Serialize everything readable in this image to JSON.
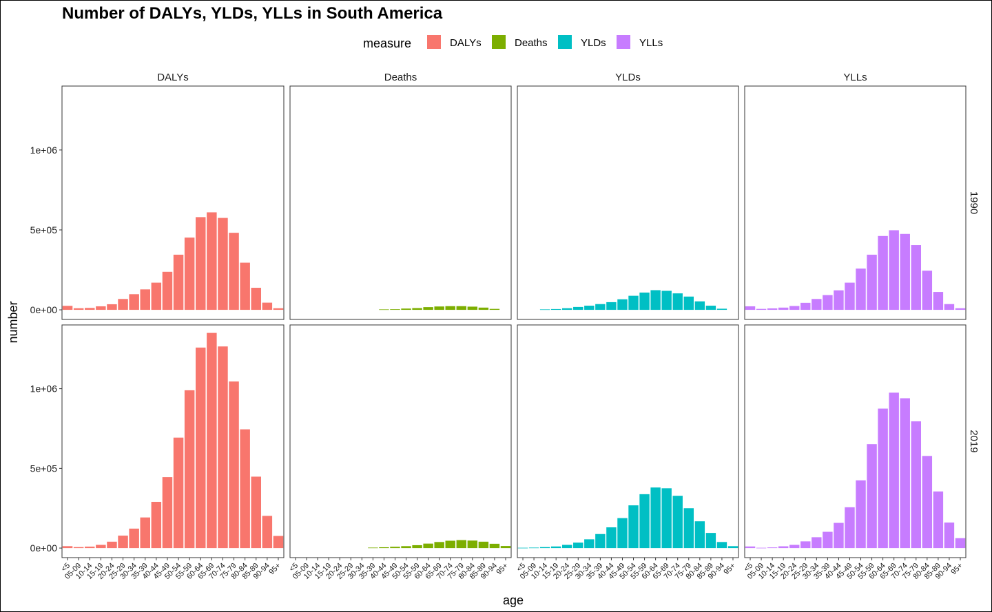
{
  "chart_data": {
    "type": "bar",
    "title": "Number of DALYs, YLDs, YLLs in South America",
    "xlabel": "age",
    "ylabel": "number",
    "ylim": [
      -60000,
      1400000
    ],
    "yticks": [
      0,
      500000,
      1000000
    ],
    "ytick_labels": [
      "0e+00",
      "5e+05",
      "1e+06"
    ],
    "legend": {
      "title": "measure",
      "placement": "top",
      "entries": [
        {
          "label": "DALYs",
          "color": "#F8766D"
        },
        {
          "label": "Deaths",
          "color": "#7CAE00"
        },
        {
          "label": "YLDs",
          "color": "#00BFC4"
        },
        {
          "label": "YLLs",
          "color": "#C77CFF"
        }
      ]
    },
    "facet_columns": [
      "DALYs",
      "Deaths",
      "YLDs",
      "YLLs"
    ],
    "facet_rows": [
      "1990",
      "2019"
    ],
    "categories": [
      "<5",
      "05-09",
      "10-14",
      "15-19",
      "20-24",
      "25-29",
      "30-34",
      "35-39",
      "40-44",
      "45-49",
      "50-54",
      "55-59",
      "60-64",
      "65-69",
      "70-74",
      "75-79",
      "80-84",
      "85-89",
      "90-94",
      "95+"
    ],
    "panels": [
      {
        "row": "1990",
        "column": "DALYs",
        "color": "#F8766D",
        "values": [
          25000,
          10000,
          12000,
          22000,
          35000,
          68000,
          98000,
          128000,
          170000,
          238000,
          345000,
          452000,
          580000,
          610000,
          575000,
          482000,
          295000,
          138000,
          45000,
          10000
        ]
      },
      {
        "row": "1990",
        "column": "Deaths",
        "color": "#7CAE00",
        "values": [
          0,
          0,
          0,
          0,
          0,
          0,
          0,
          0,
          3000,
          4000,
          8000,
          11000,
          17000,
          21000,
          23000,
          23000,
          20000,
          14000,
          6000,
          0
        ]
      },
      {
        "row": "1990",
        "column": "YLDs",
        "color": "#00BFC4",
        "values": [
          0,
          0,
          3000,
          5000,
          10000,
          18000,
          26000,
          36000,
          48000,
          66000,
          88000,
          108000,
          123000,
          119000,
          103000,
          83000,
          53000,
          26000,
          7000,
          0
        ]
      },
      {
        "row": "1990",
        "column": "YLLs",
        "color": "#C77CFF",
        "values": [
          22000,
          6000,
          9000,
          14000,
          24000,
          44000,
          68000,
          92000,
          122000,
          170000,
          258000,
          345000,
          462000,
          498000,
          475000,
          405000,
          245000,
          112000,
          36000,
          10000
        ]
      },
      {
        "row": "2019",
        "column": "DALYs",
        "color": "#F8766D",
        "values": [
          12000,
          6000,
          9000,
          20000,
          40000,
          78000,
          122000,
          192000,
          290000,
          445000,
          693000,
          990000,
          1258000,
          1350000,
          1265000,
          1045000,
          745000,
          448000,
          202000,
          76000
        ]
      },
      {
        "row": "2019",
        "column": "Deaths",
        "color": "#7CAE00",
        "values": [
          0,
          0,
          0,
          0,
          0,
          0,
          0,
          3000,
          5000,
          8000,
          12000,
          18000,
          28000,
          38000,
          46000,
          50000,
          47000,
          40000,
          27000,
          13000
        ]
      },
      {
        "row": "2019",
        "column": "YLDs",
        "color": "#00BFC4",
        "values": [
          2000,
          3000,
          6000,
          10000,
          20000,
          34000,
          55000,
          88000,
          130000,
          188000,
          268000,
          338000,
          380000,
          375000,
          328000,
          250000,
          168000,
          95000,
          38000,
          12000
        ]
      },
      {
        "row": "2019",
        "column": "YLLs",
        "color": "#C77CFF",
        "values": [
          10000,
          2000,
          4000,
          11000,
          20000,
          42000,
          68000,
          102000,
          158000,
          256000,
          425000,
          652000,
          875000,
          975000,
          940000,
          795000,
          578000,
          355000,
          160000,
          62000
        ]
      }
    ]
  }
}
